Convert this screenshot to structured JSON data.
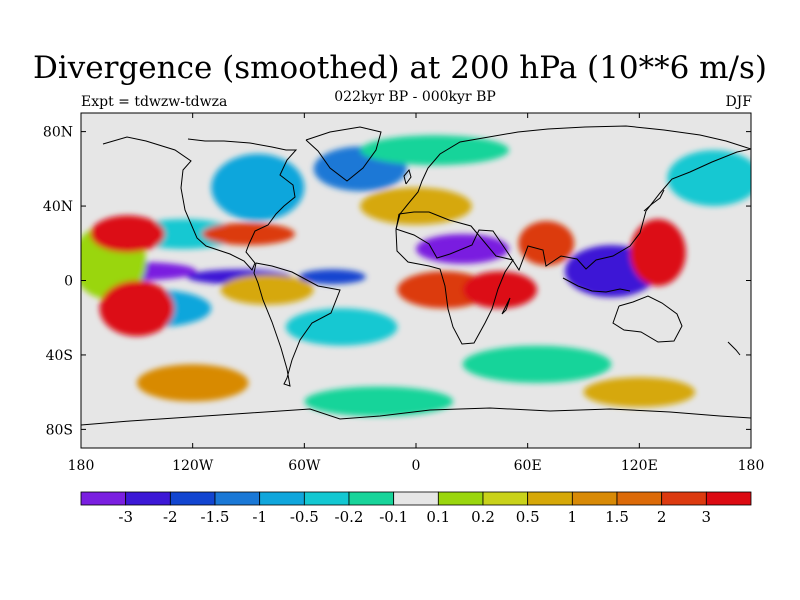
{
  "title": "Divergence (smoothed) at 200 hPa (10**6 m/s)",
  "subtitle_left": "Expt = tdwzw-tdwza",
  "subtitle_center": "022kyr BP - 000kyr BP",
  "subtitle_right": "DJF",
  "map": {
    "lon_range": [
      -180,
      180
    ],
    "lat_range": [
      -90,
      90
    ],
    "background_color": "#e6e6e6",
    "lon_ticks": [
      {
        "value": -180,
        "label": "180"
      },
      {
        "value": -120,
        "label": "120W"
      },
      {
        "value": -60,
        "label": "60W"
      },
      {
        "value": 0,
        "label": "0"
      },
      {
        "value": 60,
        "label": "60E"
      },
      {
        "value": 120,
        "label": "120E"
      },
      {
        "value": 180,
        "label": "180"
      }
    ],
    "lat_ticks": [
      {
        "value": 80,
        "label": "80N"
      },
      {
        "value": 40,
        "label": "40N"
      },
      {
        "value": 0,
        "label": "0"
      },
      {
        "value": -40,
        "label": "40S"
      },
      {
        "value": -80,
        "label": "80S"
      }
    ],
    "blobs": [
      {
        "lon": -150,
        "lat": 5,
        "rx": 32,
        "ry": 5,
        "level": 0
      },
      {
        "lon": -95,
        "lat": 2,
        "rx": 28,
        "ry": 4,
        "level": 1
      },
      {
        "lon": -45,
        "lat": 2,
        "rx": 18,
        "ry": 4,
        "level": 2
      },
      {
        "lon": 25,
        "lat": 17,
        "rx": 25,
        "ry": 8,
        "level": 0
      },
      {
        "lon": 105,
        "lat": 5,
        "rx": 25,
        "ry": 14,
        "level": 1
      },
      {
        "lon": -140,
        "lat": -15,
        "rx": 30,
        "ry": 10,
        "level": 4
      },
      {
        "lon": -125,
        "lat": 25,
        "rx": 30,
        "ry": 8,
        "level": 5
      },
      {
        "lon": -85,
        "lat": 50,
        "rx": 25,
        "ry": 18,
        "level": 4
      },
      {
        "lon": -30,
        "lat": 60,
        "rx": 25,
        "ry": 12,
        "level": 3
      },
      {
        "lon": -40,
        "lat": -25,
        "rx": 30,
        "ry": 10,
        "level": 5
      },
      {
        "lon": 65,
        "lat": -45,
        "rx": 40,
        "ry": 10,
        "level": 6
      },
      {
        "lon": -20,
        "lat": -65,
        "rx": 40,
        "ry": 8,
        "level": 6
      },
      {
        "lon": 10,
        "lat": 70,
        "rx": 40,
        "ry": 8,
        "level": 6
      },
      {
        "lon": 160,
        "lat": 55,
        "rx": 25,
        "ry": 15,
        "level": 5
      },
      {
        "lon": -165,
        "lat": 10,
        "rx": 20,
        "ry": 20,
        "level": 8
      },
      {
        "lon": -155,
        "lat": 25,
        "rx": 20,
        "ry": 10,
        "level": 14
      },
      {
        "lon": -150,
        "lat": -15,
        "rx": 20,
        "ry": 15,
        "level": 14
      },
      {
        "lon": -90,
        "lat": 25,
        "rx": 25,
        "ry": 6,
        "level": 13
      },
      {
        "lon": 15,
        "lat": -5,
        "rx": 25,
        "ry": 10,
        "level": 13
      },
      {
        "lon": 45,
        "lat": -5,
        "rx": 20,
        "ry": 10,
        "level": 14
      },
      {
        "lon": 70,
        "lat": 20,
        "rx": 15,
        "ry": 12,
        "level": 13
      },
      {
        "lon": 130,
        "lat": 15,
        "rx": 15,
        "ry": 18,
        "level": 14
      },
      {
        "lon": -80,
        "lat": -5,
        "rx": 25,
        "ry": 8,
        "level": 10
      },
      {
        "lon": 0,
        "lat": 40,
        "rx": 30,
        "ry": 10,
        "level": 10
      },
      {
        "lon": 120,
        "lat": -60,
        "rx": 30,
        "ry": 8,
        "level": 10
      },
      {
        "lon": -120,
        "lat": -55,
        "rx": 30,
        "ry": 10,
        "level": 11
      }
    ]
  },
  "colorbar": {
    "colors": [
      "#7a1fe0",
      "#3c18d6",
      "#1245d0",
      "#1a78d6",
      "#10a6dc",
      "#13c8d2",
      "#18d49a",
      "#e6e6e6",
      "#9ad60e",
      "#c9d21a",
      "#d6a808",
      "#d88a06",
      "#dc6a08",
      "#dc3a10",
      "#dc0a12"
    ],
    "labels": [
      "-3",
      "-2",
      "-1.5",
      "-1",
      "-0.5",
      "-0.2",
      "-0.1",
      "0.1",
      "0.2",
      "0.5",
      "1",
      "1.5",
      "2",
      "3"
    ]
  }
}
